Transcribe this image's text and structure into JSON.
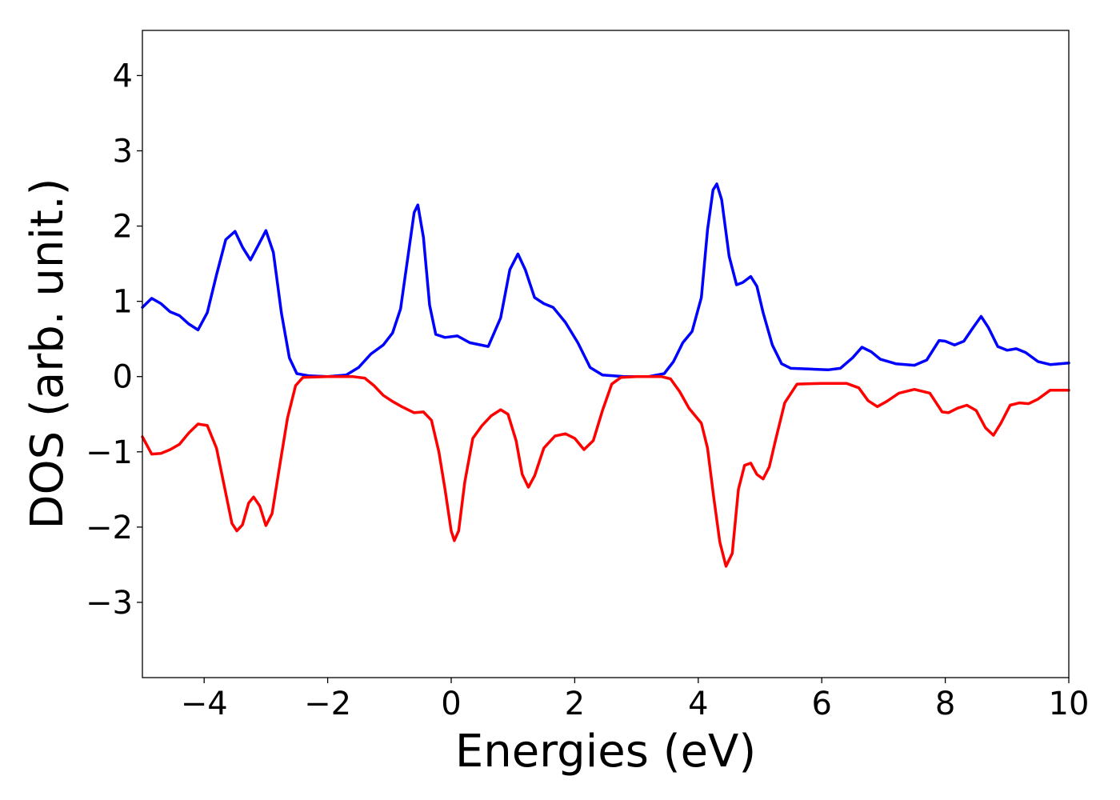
{
  "chart_data": {
    "type": "line",
    "title": "",
    "xlabel": "Energies (eV)",
    "ylabel": "DOS (arb. unit.)",
    "xlim": [
      -5,
      10
    ],
    "ylim": [
      -4,
      4.6
    ],
    "grid": false,
    "legend": "none",
    "xticks": [
      -4,
      -2,
      0,
      2,
      4,
      6,
      8,
      10
    ],
    "xtick_labels": [
      "−4",
      "−2",
      "0",
      "2",
      "4",
      "6",
      "8",
      "10"
    ],
    "yticks": [
      -3,
      -2,
      -1,
      0,
      1,
      2,
      3,
      4
    ],
    "ytick_labels": [
      "−3",
      "−2",
      "−1",
      "0",
      "1",
      "2",
      "3",
      "4"
    ],
    "series": [
      {
        "color": "#0000ff",
        "points": [
          [
            -5.0,
            0.92
          ],
          [
            -4.85,
            1.04
          ],
          [
            -4.7,
            0.97
          ],
          [
            -4.55,
            0.86
          ],
          [
            -4.4,
            0.81
          ],
          [
            -4.25,
            0.7
          ],
          [
            -4.1,
            0.62
          ],
          [
            -3.95,
            0.85
          ],
          [
            -3.8,
            1.35
          ],
          [
            -3.65,
            1.82
          ],
          [
            -3.5,
            1.93
          ],
          [
            -3.38,
            1.72
          ],
          [
            -3.25,
            1.55
          ],
          [
            -3.12,
            1.75
          ],
          [
            -3.0,
            1.94
          ],
          [
            -2.88,
            1.65
          ],
          [
            -2.75,
            0.85
          ],
          [
            -2.62,
            0.25
          ],
          [
            -2.5,
            0.04
          ],
          [
            -2.3,
            0.01
          ],
          [
            -2.0,
            0.0
          ],
          [
            -1.7,
            0.02
          ],
          [
            -1.5,
            0.12
          ],
          [
            -1.3,
            0.3
          ],
          [
            -1.1,
            0.42
          ],
          [
            -0.95,
            0.58
          ],
          [
            -0.82,
            0.9
          ],
          [
            -0.7,
            1.6
          ],
          [
            -0.6,
            2.18
          ],
          [
            -0.54,
            2.28
          ],
          [
            -0.45,
            1.85
          ],
          [
            -0.35,
            0.95
          ],
          [
            -0.25,
            0.56
          ],
          [
            -0.1,
            0.52
          ],
          [
            0.1,
            0.54
          ],
          [
            0.3,
            0.45
          ],
          [
            0.6,
            0.4
          ],
          [
            0.8,
            0.78
          ],
          [
            0.95,
            1.42
          ],
          [
            1.08,
            1.63
          ],
          [
            1.2,
            1.42
          ],
          [
            1.35,
            1.05
          ],
          [
            1.5,
            0.97
          ],
          [
            1.65,
            0.92
          ],
          [
            1.85,
            0.72
          ],
          [
            2.05,
            0.45
          ],
          [
            2.25,
            0.12
          ],
          [
            2.45,
            0.02
          ],
          [
            2.8,
            0.0
          ],
          [
            3.2,
            0.0
          ],
          [
            3.45,
            0.04
          ],
          [
            3.6,
            0.2
          ],
          [
            3.75,
            0.45
          ],
          [
            3.9,
            0.6
          ],
          [
            4.05,
            1.05
          ],
          [
            4.15,
            1.95
          ],
          [
            4.24,
            2.48
          ],
          [
            4.3,
            2.56
          ],
          [
            4.38,
            2.35
          ],
          [
            4.5,
            1.6
          ],
          [
            4.62,
            1.22
          ],
          [
            4.72,
            1.25
          ],
          [
            4.85,
            1.33
          ],
          [
            4.95,
            1.2
          ],
          [
            5.05,
            0.85
          ],
          [
            5.2,
            0.42
          ],
          [
            5.35,
            0.17
          ],
          [
            5.5,
            0.11
          ],
          [
            5.8,
            0.1
          ],
          [
            6.1,
            0.09
          ],
          [
            6.3,
            0.11
          ],
          [
            6.5,
            0.25
          ],
          [
            6.65,
            0.39
          ],
          [
            6.8,
            0.33
          ],
          [
            6.95,
            0.23
          ],
          [
            7.2,
            0.17
          ],
          [
            7.5,
            0.15
          ],
          [
            7.7,
            0.22
          ],
          [
            7.9,
            0.48
          ],
          [
            8.0,
            0.47
          ],
          [
            8.15,
            0.42
          ],
          [
            8.3,
            0.47
          ],
          [
            8.45,
            0.65
          ],
          [
            8.58,
            0.8
          ],
          [
            8.7,
            0.65
          ],
          [
            8.85,
            0.4
          ],
          [
            9.0,
            0.35
          ],
          [
            9.15,
            0.37
          ],
          [
            9.3,
            0.32
          ],
          [
            9.5,
            0.2
          ],
          [
            9.7,
            0.16
          ],
          [
            10.0,
            0.18
          ]
        ]
      },
      {
        "color": "#ff0000",
        "points": [
          [
            -5.0,
            -0.8
          ],
          [
            -4.85,
            -1.03
          ],
          [
            -4.7,
            -1.02
          ],
          [
            -4.55,
            -0.97
          ],
          [
            -4.4,
            -0.9
          ],
          [
            -4.25,
            -0.75
          ],
          [
            -4.1,
            -0.63
          ],
          [
            -3.95,
            -0.65
          ],
          [
            -3.8,
            -0.95
          ],
          [
            -3.65,
            -1.55
          ],
          [
            -3.55,
            -1.95
          ],
          [
            -3.47,
            -2.05
          ],
          [
            -3.38,
            -1.97
          ],
          [
            -3.28,
            -1.68
          ],
          [
            -3.2,
            -1.6
          ],
          [
            -3.1,
            -1.72
          ],
          [
            -3.0,
            -1.98
          ],
          [
            -2.9,
            -1.82
          ],
          [
            -2.78,
            -1.2
          ],
          [
            -2.65,
            -0.55
          ],
          [
            -2.52,
            -0.12
          ],
          [
            -2.4,
            -0.01
          ],
          [
            -2.0,
            0.0
          ],
          [
            -1.6,
            0.0
          ],
          [
            -1.4,
            -0.02
          ],
          [
            -1.25,
            -0.12
          ],
          [
            -1.1,
            -0.25
          ],
          [
            -0.95,
            -0.33
          ],
          [
            -0.8,
            -0.4
          ],
          [
            -0.6,
            -0.48
          ],
          [
            -0.45,
            -0.47
          ],
          [
            -0.32,
            -0.58
          ],
          [
            -0.2,
            -1.0
          ],
          [
            -0.1,
            -1.5
          ],
          [
            0.0,
            -2.05
          ],
          [
            0.05,
            -2.18
          ],
          [
            0.12,
            -2.05
          ],
          [
            0.22,
            -1.4
          ],
          [
            0.35,
            -0.82
          ],
          [
            0.5,
            -0.65
          ],
          [
            0.65,
            -0.52
          ],
          [
            0.8,
            -0.44
          ],
          [
            0.92,
            -0.5
          ],
          [
            1.05,
            -0.85
          ],
          [
            1.15,
            -1.3
          ],
          [
            1.25,
            -1.47
          ],
          [
            1.35,
            -1.32
          ],
          [
            1.5,
            -0.95
          ],
          [
            1.68,
            -0.79
          ],
          [
            1.85,
            -0.76
          ],
          [
            2.0,
            -0.82
          ],
          [
            2.15,
            -0.97
          ],
          [
            2.3,
            -0.85
          ],
          [
            2.45,
            -0.45
          ],
          [
            2.6,
            -0.1
          ],
          [
            2.75,
            -0.01
          ],
          [
            3.0,
            0.0
          ],
          [
            3.4,
            0.0
          ],
          [
            3.55,
            -0.03
          ],
          [
            3.7,
            -0.2
          ],
          [
            3.85,
            -0.42
          ],
          [
            4.05,
            -0.62
          ],
          [
            4.15,
            -0.95
          ],
          [
            4.25,
            -1.6
          ],
          [
            4.35,
            -2.2
          ],
          [
            4.45,
            -2.52
          ],
          [
            4.55,
            -2.35
          ],
          [
            4.65,
            -1.5
          ],
          [
            4.75,
            -1.18
          ],
          [
            4.85,
            -1.15
          ],
          [
            4.95,
            -1.3
          ],
          [
            5.05,
            -1.36
          ],
          [
            5.15,
            -1.2
          ],
          [
            5.25,
            -0.85
          ],
          [
            5.4,
            -0.35
          ],
          [
            5.6,
            -0.1
          ],
          [
            6.0,
            -0.09
          ],
          [
            6.4,
            -0.09
          ],
          [
            6.6,
            -0.15
          ],
          [
            6.75,
            -0.32
          ],
          [
            6.9,
            -0.4
          ],
          [
            7.05,
            -0.33
          ],
          [
            7.25,
            -0.22
          ],
          [
            7.5,
            -0.17
          ],
          [
            7.75,
            -0.22
          ],
          [
            7.95,
            -0.47
          ],
          [
            8.05,
            -0.48
          ],
          [
            8.2,
            -0.42
          ],
          [
            8.35,
            -0.38
          ],
          [
            8.5,
            -0.45
          ],
          [
            8.65,
            -0.68
          ],
          [
            8.78,
            -0.78
          ],
          [
            8.9,
            -0.62
          ],
          [
            9.05,
            -0.38
          ],
          [
            9.2,
            -0.35
          ],
          [
            9.35,
            -0.36
          ],
          [
            9.5,
            -0.3
          ],
          [
            9.7,
            -0.18
          ],
          [
            10.0,
            -0.18
          ]
        ]
      }
    ]
  }
}
